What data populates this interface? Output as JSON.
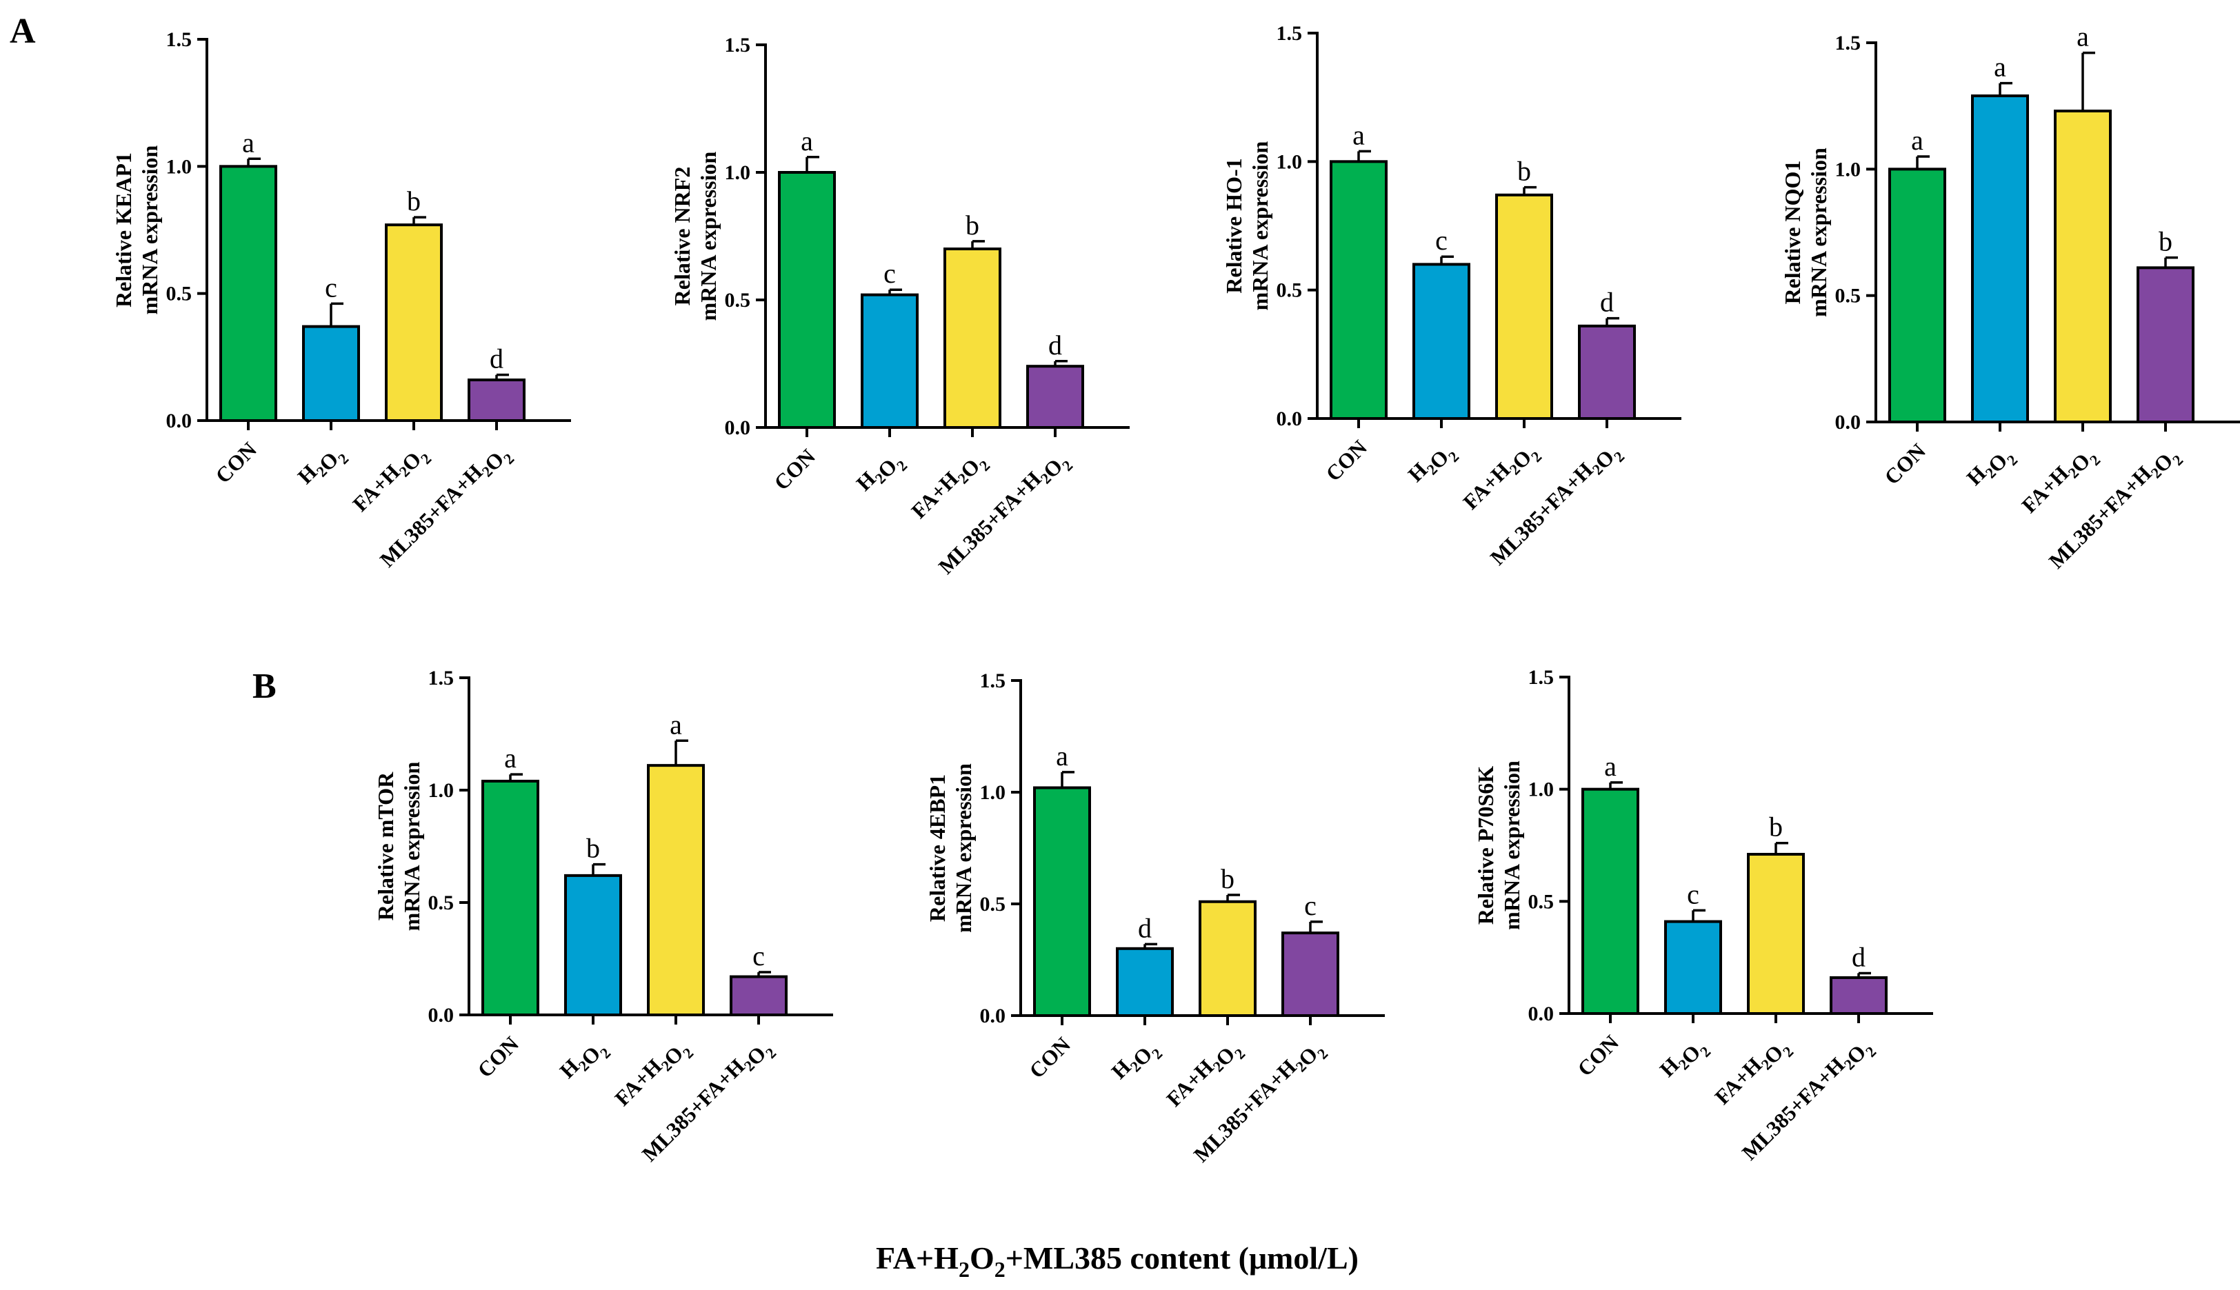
{
  "colors": {
    "CON": "#00b050",
    "H2O2": "#00a0d2",
    "FA+H2O2": "#f7df3c",
    "ML385+FA+H2O2": "#8147a0",
    "axis": "#000000"
  },
  "panel_letters": [
    "A",
    "B"
  ],
  "x_caption": {
    "prefix": "FA+H",
    "sub1": "2",
    "mid": "O",
    "sub2": "2",
    "suffix": "+ML385 content (μmol/L)"
  },
  "categories": [
    {
      "key": "CON",
      "parts": [
        [
          "CON",
          ""
        ]
      ]
    },
    {
      "key": "H2O2",
      "parts": [
        [
          "H",
          "2"
        ],
        [
          "O",
          "2"
        ]
      ]
    },
    {
      "key": "FA+H2O2",
      "parts": [
        [
          "FA+H",
          "2"
        ],
        [
          "O",
          "2"
        ]
      ]
    },
    {
      "key": "ML385+FA+H2O2",
      "parts": [
        [
          "ML385+FA+H",
          "2"
        ],
        [
          "O",
          "2"
        ]
      ]
    }
  ],
  "chart_data": [
    {
      "type": "bar",
      "panel": "A",
      "ylabel": [
        "Relative KEAP1",
        "mRNA expression"
      ],
      "ylim": [
        0,
        1.5
      ],
      "yticks": [
        "0.0",
        "0.5",
        "1.0",
        "1.5"
      ],
      "categories": [
        "CON",
        "H2O2",
        "FA+H2O2",
        "ML385+FA+H2O2"
      ],
      "values": [
        1.0,
        0.37,
        0.77,
        0.16
      ],
      "errors": [
        0.03,
        0.09,
        0.03,
        0.02
      ],
      "letters": [
        "a",
        "c",
        "b",
        "d"
      ]
    },
    {
      "type": "bar",
      "panel": "A",
      "ylabel": [
        "Relative NRF2",
        "mRNA expression"
      ],
      "ylim": [
        0,
        1.5
      ],
      "yticks": [
        "0.0",
        "0.5",
        "1.0",
        "1.5"
      ],
      "categories": [
        "CON",
        "H2O2",
        "FA+H2O2",
        "ML385+FA+H2O2"
      ],
      "values": [
        1.0,
        0.52,
        0.7,
        0.24
      ],
      "errors": [
        0.06,
        0.02,
        0.03,
        0.02
      ],
      "letters": [
        "a",
        "c",
        "b",
        "d"
      ]
    },
    {
      "type": "bar",
      "panel": "A",
      "ylabel": [
        "Relative HO-1",
        "mRNA expression"
      ],
      "ylim": [
        0,
        1.5
      ],
      "yticks": [
        "0.0",
        "0.5",
        "1.0",
        "1.5"
      ],
      "categories": [
        "CON",
        "H2O2",
        "FA+H2O2",
        "ML385+FA+H2O2"
      ],
      "values": [
        1.0,
        0.6,
        0.87,
        0.36
      ],
      "errors": [
        0.04,
        0.03,
        0.03,
        0.03
      ],
      "letters": [
        "a",
        "c",
        "b",
        "d"
      ]
    },
    {
      "type": "bar",
      "panel": "A",
      "ylabel": [
        "Relative NQO1",
        "mRNA expression"
      ],
      "ylim": [
        0,
        1.5
      ],
      "yticks": [
        "0.0",
        "0.5",
        "1.0",
        "1.5"
      ],
      "categories": [
        "CON",
        "H2O2",
        "FA+H2O2",
        "ML385+FA+H2O2"
      ],
      "values": [
        1.0,
        1.29,
        1.23,
        0.61
      ],
      "errors": [
        0.05,
        0.05,
        0.23,
        0.04
      ],
      "letters": [
        "a",
        "a",
        "a",
        "b"
      ]
    },
    {
      "type": "bar",
      "panel": "B",
      "ylabel": [
        "Relative mTOR",
        "mRNA expression"
      ],
      "ylim": [
        0,
        1.5
      ],
      "yticks": [
        "0.0",
        "0.5",
        "1.0",
        "1.5"
      ],
      "categories": [
        "CON",
        "H2O2",
        "FA+H2O2",
        "ML385+FA+H2O2"
      ],
      "values": [
        1.04,
        0.62,
        1.11,
        0.17
      ],
      "errors": [
        0.03,
        0.05,
        0.11,
        0.02
      ],
      "letters": [
        "a",
        "b",
        "a",
        "c"
      ]
    },
    {
      "type": "bar",
      "panel": "B",
      "ylabel": [
        "Relative 4EBP1",
        "mRNA expression"
      ],
      "ylim": [
        0,
        1.5
      ],
      "yticks": [
        "0.0",
        "0.5",
        "1.0",
        "1.5"
      ],
      "categories": [
        "CON",
        "H2O2",
        "FA+H2O2",
        "ML385+FA+H2O2"
      ],
      "values": [
        1.02,
        0.3,
        0.51,
        0.37
      ],
      "errors": [
        0.07,
        0.02,
        0.03,
        0.05
      ],
      "letters": [
        "a",
        "d",
        "b",
        "c"
      ]
    },
    {
      "type": "bar",
      "panel": "B",
      "ylabel": [
        "Relative P70S6K",
        "mRNA expression"
      ],
      "ylim": [
        0,
        1.5
      ],
      "yticks": [
        "0.0",
        "0.5",
        "1.0",
        "1.5"
      ],
      "categories": [
        "CON",
        "H2O2",
        "FA+H2O2",
        "ML385+FA+H2O2"
      ],
      "values": [
        1.0,
        0.41,
        0.71,
        0.16
      ],
      "errors": [
        0.03,
        0.05,
        0.05,
        0.02
      ],
      "letters": [
        "a",
        "c",
        "b",
        "d"
      ]
    }
  ]
}
